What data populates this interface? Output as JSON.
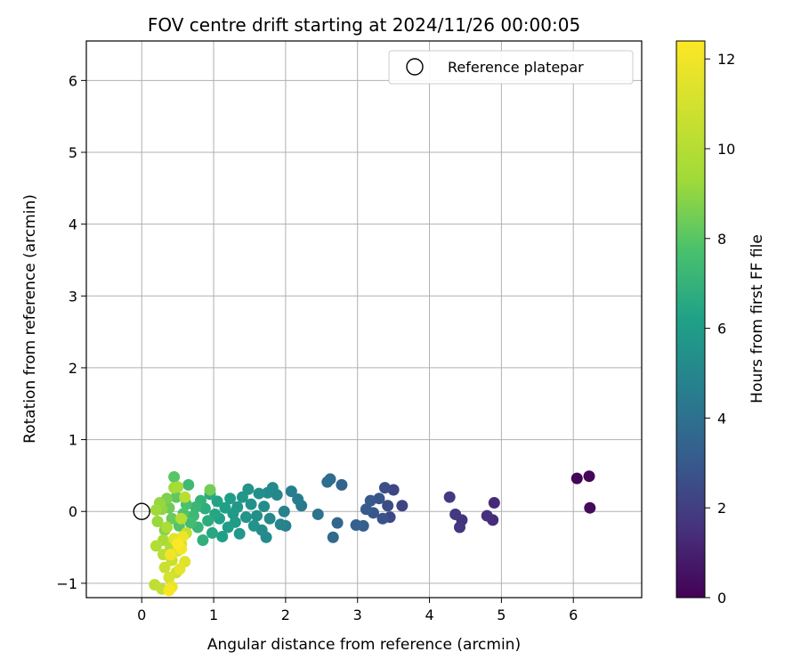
{
  "chart_data": {
    "type": "scatter",
    "title": "FOV centre drift starting at 2024/11/26 00:00:05",
    "xlabel": "Angular distance from reference (arcmin)",
    "ylabel": "Rotation from reference (arcmin)",
    "xlim": [
      -0.77,
      6.95
    ],
    "ylim": [
      -1.2,
      6.55
    ],
    "x_ticks": [
      0,
      1,
      2,
      3,
      4,
      5,
      6
    ],
    "y_ticks": [
      -1,
      0,
      1,
      2,
      3,
      4,
      5,
      6
    ],
    "grid": true,
    "legend": {
      "position": "top-right",
      "entries": [
        {
          "label": "Reference platepar",
          "marker": "open-circle"
        }
      ]
    },
    "reference_point": {
      "x": 0,
      "y": 0
    },
    "colorbar": {
      "label": "Hours from first FF file",
      "range": [
        0,
        12.4
      ],
      "ticks": [
        0,
        2,
        4,
        6,
        8,
        10,
        12
      ],
      "colormap": "viridis"
    },
    "points": [
      {
        "x": 6.05,
        "y": 0.46,
        "c": 0.1
      },
      {
        "x": 6.22,
        "y": 0.49,
        "c": 0.2
      },
      {
        "x": 6.23,
        "y": 0.05,
        "c": 0.3
      },
      {
        "x": 4.9,
        "y": 0.12,
        "c": 1.3
      },
      {
        "x": 4.88,
        "y": -0.12,
        "c": 1.4
      },
      {
        "x": 4.8,
        "y": -0.06,
        "c": 1.5
      },
      {
        "x": 4.45,
        "y": -0.12,
        "c": 1.6
      },
      {
        "x": 4.42,
        "y": -0.22,
        "c": 1.7
      },
      {
        "x": 4.36,
        "y": -0.04,
        "c": 1.8
      },
      {
        "x": 4.28,
        "y": 0.2,
        "c": 1.9
      },
      {
        "x": 3.62,
        "y": 0.08,
        "c": 2.2
      },
      {
        "x": 3.5,
        "y": 0.3,
        "c": 2.3
      },
      {
        "x": 3.45,
        "y": -0.08,
        "c": 2.4
      },
      {
        "x": 3.42,
        "y": 0.08,
        "c": 2.5
      },
      {
        "x": 3.38,
        "y": 0.33,
        "c": 2.6
      },
      {
        "x": 3.35,
        "y": -0.1,
        "c": 2.7
      },
      {
        "x": 3.3,
        "y": 0.18,
        "c": 2.8
      },
      {
        "x": 3.22,
        "y": -0.02,
        "c": 2.9
      },
      {
        "x": 3.18,
        "y": 0.15,
        "c": 3.0
      },
      {
        "x": 3.12,
        "y": 0.03,
        "c": 3.1
      },
      {
        "x": 3.08,
        "y": -0.2,
        "c": 3.2
      },
      {
        "x": 2.98,
        "y": -0.19,
        "c": 3.3
      },
      {
        "x": 2.78,
        "y": 0.37,
        "c": 3.5
      },
      {
        "x": 2.72,
        "y": -0.16,
        "c": 3.6
      },
      {
        "x": 2.66,
        "y": -0.36,
        "c": 3.7
      },
      {
        "x": 2.62,
        "y": 0.45,
        "c": 3.8
      },
      {
        "x": 2.58,
        "y": 0.41,
        "c": 3.9
      },
      {
        "x": 2.45,
        "y": -0.04,
        "c": 4.1
      },
      {
        "x": 2.22,
        "y": 0.08,
        "c": 4.4
      },
      {
        "x": 2.17,
        "y": 0.17,
        "c": 4.5
      },
      {
        "x": 2.08,
        "y": 0.28,
        "c": 4.6
      },
      {
        "x": 2.0,
        "y": -0.2,
        "c": 4.7
      },
      {
        "x": 1.98,
        "y": 0.0,
        "c": 4.8
      },
      {
        "x": 1.93,
        "y": -0.18,
        "c": 4.9
      },
      {
        "x": 1.88,
        "y": 0.23,
        "c": 5.0
      },
      {
        "x": 1.82,
        "y": 0.33,
        "c": 5.1
      },
      {
        "x": 1.78,
        "y": -0.1,
        "c": 5.1
      },
      {
        "x": 1.75,
        "y": 0.26,
        "c": 5.2
      },
      {
        "x": 1.73,
        "y": -0.36,
        "c": 5.2
      },
      {
        "x": 1.7,
        "y": 0.07,
        "c": 5.3
      },
      {
        "x": 1.67,
        "y": -0.26,
        "c": 5.3
      },
      {
        "x": 1.63,
        "y": 0.25,
        "c": 5.4
      },
      {
        "x": 1.6,
        "y": -0.06,
        "c": 5.4
      },
      {
        "x": 1.56,
        "y": -0.2,
        "c": 5.5
      },
      {
        "x": 1.52,
        "y": 0.1,
        "c": 5.5
      },
      {
        "x": 1.48,
        "y": 0.31,
        "c": 5.6
      },
      {
        "x": 1.45,
        "y": -0.08,
        "c": 5.6
      },
      {
        "x": 1.4,
        "y": 0.2,
        "c": 5.7
      },
      {
        "x": 1.36,
        "y": -0.31,
        "c": 5.8
      },
      {
        "x": 1.33,
        "y": 0.06,
        "c": 5.8
      },
      {
        "x": 1.3,
        "y": -0.15,
        "c": 5.9
      },
      {
        "x": 1.27,
        "y": -0.03,
        "c": 5.9
      },
      {
        "x": 1.23,
        "y": 0.18,
        "c": 6.0
      },
      {
        "x": 1.2,
        "y": -0.22,
        "c": 6.0
      },
      {
        "x": 1.16,
        "y": 0.05,
        "c": 6.1
      },
      {
        "x": 1.12,
        "y": -0.35,
        "c": 6.1
      },
      {
        "x": 1.08,
        "y": -0.1,
        "c": 6.2
      },
      {
        "x": 1.05,
        "y": 0.14,
        "c": 6.3
      },
      {
        "x": 1.02,
        "y": -0.04,
        "c": 6.4
      },
      {
        "x": 0.98,
        "y": -0.3,
        "c": 6.5
      },
      {
        "x": 0.95,
        "y": 0.24,
        "c": 6.6
      },
      {
        "x": 0.92,
        "y": -0.13,
        "c": 6.7
      },
      {
        "x": 0.88,
        "y": 0.04,
        "c": 6.8
      },
      {
        "x": 0.85,
        "y": -0.4,
        "c": 6.9
      },
      {
        "x": 0.82,
        "y": 0.15,
        "c": 7.0
      },
      {
        "x": 0.78,
        "y": -0.22,
        "c": 7.1
      },
      {
        "x": 0.75,
        "y": 0.06,
        "c": 7.2
      },
      {
        "x": 0.72,
        "y": -0.06,
        "c": 7.3
      },
      {
        "x": 0.65,
        "y": 0.37,
        "c": 7.4
      },
      {
        "x": 0.68,
        "y": -0.16,
        "c": 7.5
      },
      {
        "x": 0.62,
        "y": 0.1,
        "c": 7.7
      },
      {
        "x": 0.58,
        "y": -0.03,
        "c": 7.8
      },
      {
        "x": 0.52,
        "y": -0.2,
        "c": 7.9
      },
      {
        "x": 0.45,
        "y": 0.48,
        "c": 8.0
      },
      {
        "x": 0.48,
        "y": 0.2,
        "c": 8.1
      },
      {
        "x": 0.42,
        "y": -0.1,
        "c": 8.3
      },
      {
        "x": 0.38,
        "y": 0.05,
        "c": 8.4
      },
      {
        "x": 0.95,
        "y": 0.3,
        "c": 8.5
      },
      {
        "x": 0.35,
        "y": 0.18,
        "c": 8.7
      },
      {
        "x": 0.32,
        "y": -0.26,
        "c": 8.8
      },
      {
        "x": 0.28,
        "y": 0.03,
        "c": 9.0
      },
      {
        "x": 0.25,
        "y": 0.12,
        "c": 9.1
      },
      {
        "x": 0.22,
        "y": -0.14,
        "c": 9.2
      },
      {
        "x": 0.2,
        "y": 0.02,
        "c": 9.3
      },
      {
        "x": 0.45,
        "y": 0.33,
        "c": 9.4
      },
      {
        "x": 0.5,
        "y": 0.34,
        "c": 9.5
      },
      {
        "x": 0.3,
        "y": -0.4,
        "c": 9.6
      },
      {
        "x": 0.35,
        "y": -0.22,
        "c": 9.7
      },
      {
        "x": 0.4,
        "y": -0.5,
        "c": 9.8
      },
      {
        "x": 0.2,
        "y": -0.48,
        "c": 9.9
      },
      {
        "x": 0.55,
        "y": -0.1,
        "c": 10.0
      },
      {
        "x": 0.6,
        "y": 0.2,
        "c": 10.1
      },
      {
        "x": 0.3,
        "y": -0.6,
        "c": 10.2
      },
      {
        "x": 0.18,
        "y": -1.02,
        "c": 10.3
      },
      {
        "x": 0.28,
        "y": -1.08,
        "c": 10.4
      },
      {
        "x": 0.62,
        "y": -0.3,
        "c": 10.5
      },
      {
        "x": 0.42,
        "y": -0.68,
        "c": 10.6
      },
      {
        "x": 0.32,
        "y": -0.78,
        "c": 10.7
      },
      {
        "x": 0.48,
        "y": -0.85,
        "c": 10.8
      },
      {
        "x": 0.55,
        "y": -0.45,
        "c": 11.0
      },
      {
        "x": 0.38,
        "y": -0.92,
        "c": 11.1
      },
      {
        "x": 0.5,
        "y": -0.55,
        "c": 11.2
      },
      {
        "x": 0.6,
        "y": -0.7,
        "c": 11.4
      },
      {
        "x": 0.45,
        "y": -0.38,
        "c": 11.5
      },
      {
        "x": 0.53,
        "y": -0.8,
        "c": 11.6
      },
      {
        "x": 0.42,
        "y": -1.05,
        "c": 11.8
      },
      {
        "x": 0.57,
        "y": -0.35,
        "c": 11.9
      },
      {
        "x": 0.4,
        "y": -0.6,
        "c": 12.0
      },
      {
        "x": 0.55,
        "y": -0.52,
        "c": 12.1
      },
      {
        "x": 0.38,
        "y": -1.1,
        "c": 12.2
      },
      {
        "x": 0.5,
        "y": -0.45,
        "c": 12.3
      }
    ]
  }
}
